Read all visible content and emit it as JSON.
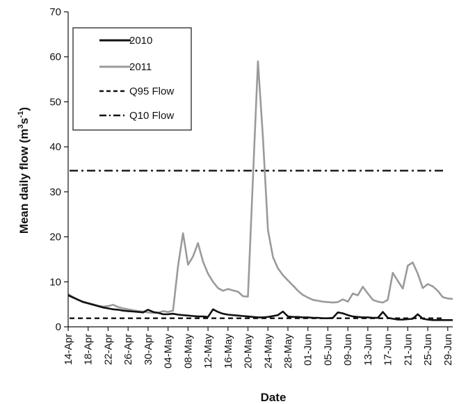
{
  "chart_data": {
    "type": "line",
    "title": "",
    "xlabel": "Date",
    "ylabel": "Mean daily flow (m³s⁻¹)",
    "ylabel_parts": {
      "main": "Mean daily flow (m",
      "sup1": "3",
      "mid": "s",
      "sup2": "-1",
      "end": ")"
    },
    "ylim": [
      0,
      70
    ],
    "yticks": [
      0,
      10,
      20,
      30,
      40,
      50,
      60,
      70
    ],
    "x_dates": [
      "14-Apr",
      "18-Apr",
      "22-Apr",
      "26-Apr",
      "30-Apr",
      "04-May",
      "08-May",
      "12-May",
      "16-May",
      "20-May",
      "24-May",
      "28-May",
      "01-Jun",
      "05-Jun",
      "09-Jun",
      "13-Jun",
      "17-Jun",
      "21-Jun",
      "25-Jun",
      "29-Jun"
    ],
    "legend_position": "top-left",
    "series": [
      {
        "name": "2010",
        "style": "solid",
        "color": "#111111",
        "points": [
          [
            "14-Apr",
            7.0
          ],
          [
            "15-Apr",
            6.5
          ],
          [
            "16-Apr",
            6.0
          ],
          [
            "17-Apr",
            5.5
          ],
          [
            "18-Apr",
            5.2
          ],
          [
            "19-Apr",
            4.9
          ],
          [
            "20-Apr",
            4.6
          ],
          [
            "21-Apr",
            4.3
          ],
          [
            "22-Apr",
            4.1
          ],
          [
            "23-Apr",
            3.9
          ],
          [
            "24-Apr",
            3.8
          ],
          [
            "25-Apr",
            3.6
          ],
          [
            "26-Apr",
            3.5
          ],
          [
            "27-Apr",
            3.4
          ],
          [
            "28-Apr",
            3.3
          ],
          [
            "29-Apr",
            3.2
          ],
          [
            "30-Apr",
            3.8
          ],
          [
            "01-May",
            3.3
          ],
          [
            "02-May",
            3.1
          ],
          [
            "03-May",
            2.8
          ],
          [
            "04-May",
            2.8
          ],
          [
            "05-May",
            2.9
          ],
          [
            "06-May",
            2.7
          ],
          [
            "07-May",
            2.6
          ],
          [
            "08-May",
            2.5
          ],
          [
            "09-May",
            2.4
          ],
          [
            "10-May",
            2.3
          ],
          [
            "11-May",
            2.3
          ],
          [
            "12-May",
            2.2
          ],
          [
            "13-May",
            3.9
          ],
          [
            "14-May",
            3.3
          ],
          [
            "15-May",
            2.9
          ],
          [
            "16-May",
            2.7
          ],
          [
            "17-May",
            2.6
          ],
          [
            "18-May",
            2.5
          ],
          [
            "19-May",
            2.4
          ],
          [
            "20-May",
            2.3
          ],
          [
            "21-May",
            2.2
          ],
          [
            "22-May",
            2.1
          ],
          [
            "23-May",
            2.1
          ],
          [
            "24-May",
            2.2
          ],
          [
            "25-May",
            2.4
          ],
          [
            "26-May",
            2.6
          ],
          [
            "27-May",
            3.4
          ],
          [
            "28-May",
            2.3
          ],
          [
            "29-May",
            2.2
          ],
          [
            "30-May",
            2.2
          ],
          [
            "31-May",
            2.1
          ],
          [
            "01-Jun",
            2.1
          ],
          [
            "02-Jun",
            2.0
          ],
          [
            "03-Jun",
            2.0
          ],
          [
            "04-Jun",
            1.9
          ],
          [
            "05-Jun",
            1.9
          ],
          [
            "06-Jun",
            2.0
          ],
          [
            "07-Jun",
            3.2
          ],
          [
            "08-Jun",
            3.0
          ],
          [
            "09-Jun",
            2.6
          ],
          [
            "10-Jun",
            2.3
          ],
          [
            "11-Jun",
            2.2
          ],
          [
            "12-Jun",
            2.1
          ],
          [
            "13-Jun",
            2.1
          ],
          [
            "14-Jun",
            2.0
          ],
          [
            "15-Jun",
            2.0
          ],
          [
            "16-Jun",
            3.3
          ],
          [
            "17-Jun",
            2.0
          ],
          [
            "18-Jun",
            1.8
          ],
          [
            "19-Jun",
            1.6
          ],
          [
            "20-Jun",
            1.6
          ],
          [
            "21-Jun",
            1.7
          ],
          [
            "22-Jun",
            1.8
          ],
          [
            "23-Jun",
            2.8
          ],
          [
            "24-Jun",
            1.8
          ],
          [
            "25-Jun",
            1.6
          ],
          [
            "26-Jun",
            1.5
          ],
          [
            "27-Jun",
            1.5
          ],
          [
            "28-Jun",
            1.5
          ],
          [
            "29-Jun",
            1.5
          ],
          [
            "30-Jun",
            1.5
          ]
        ]
      },
      {
        "name": "2011",
        "style": "solid",
        "color": "#9a9a9a",
        "points": [
          [
            "14-Apr",
            7.3
          ],
          [
            "15-Apr",
            6.6
          ],
          [
            "16-Apr",
            6.0
          ],
          [
            "17-Apr",
            5.6
          ],
          [
            "18-Apr",
            5.3
          ],
          [
            "19-Apr",
            5.0
          ],
          [
            "20-Apr",
            4.7
          ],
          [
            "21-Apr",
            4.5
          ],
          [
            "22-Apr",
            4.6
          ],
          [
            "23-Apr",
            4.9
          ],
          [
            "24-Apr",
            4.4
          ],
          [
            "25-Apr",
            4.1
          ],
          [
            "26-Apr",
            3.9
          ],
          [
            "27-Apr",
            3.7
          ],
          [
            "28-Apr",
            3.5
          ],
          [
            "29-Apr",
            3.4
          ],
          [
            "30-Apr",
            3.2
          ],
          [
            "01-May",
            3.1
          ],
          [
            "02-May",
            3.1
          ],
          [
            "03-May",
            3.5
          ],
          [
            "04-May",
            3.3
          ],
          [
            "05-May",
            3.6
          ],
          [
            "06-May",
            13.5
          ],
          [
            "07-May",
            20.8
          ],
          [
            "08-May",
            13.8
          ],
          [
            "09-May",
            15.6
          ],
          [
            "10-May",
            18.6
          ],
          [
            "11-May",
            14.5
          ],
          [
            "12-May",
            11.8
          ],
          [
            "13-May",
            10.0
          ],
          [
            "14-May",
            8.6
          ],
          [
            "15-May",
            8.0
          ],
          [
            "16-May",
            8.4
          ],
          [
            "17-May",
            8.1
          ],
          [
            "18-May",
            7.8
          ],
          [
            "19-May",
            6.8
          ],
          [
            "20-May",
            6.7
          ],
          [
            "21-May",
            33.0
          ],
          [
            "22-May",
            59.0
          ],
          [
            "23-May",
            42.0
          ],
          [
            "24-May",
            21.5
          ],
          [
            "25-May",
            15.5
          ],
          [
            "26-May",
            13.0
          ],
          [
            "27-May",
            11.5
          ],
          [
            "28-May",
            10.3
          ],
          [
            "29-May",
            9.2
          ],
          [
            "30-May",
            8.0
          ],
          [
            "31-May",
            7.1
          ],
          [
            "01-Jun",
            6.5
          ],
          [
            "02-Jun",
            6.0
          ],
          [
            "03-Jun",
            5.8
          ],
          [
            "04-Jun",
            5.6
          ],
          [
            "05-Jun",
            5.5
          ],
          [
            "06-Jun",
            5.4
          ],
          [
            "07-Jun",
            5.5
          ],
          [
            "08-Jun",
            6.1
          ],
          [
            "09-Jun",
            5.6
          ],
          [
            "10-Jun",
            7.4
          ],
          [
            "11-Jun",
            7.0
          ],
          [
            "12-Jun",
            8.9
          ],
          [
            "13-Jun",
            7.4
          ],
          [
            "14-Jun",
            6.0
          ],
          [
            "15-Jun",
            5.6
          ],
          [
            "16-Jun",
            5.4
          ],
          [
            "17-Jun",
            6.0
          ],
          [
            "18-Jun",
            12.0
          ],
          [
            "19-Jun",
            10.2
          ],
          [
            "20-Jun",
            8.5
          ],
          [
            "21-Jun",
            13.6
          ],
          [
            "22-Jun",
            14.3
          ],
          [
            "23-Jun",
            11.8
          ],
          [
            "24-Jun",
            8.6
          ],
          [
            "25-Jun",
            9.5
          ],
          [
            "26-Jun",
            9.0
          ],
          [
            "27-Jun",
            8.0
          ],
          [
            "28-Jun",
            6.6
          ],
          [
            "29-Jun",
            6.3
          ],
          [
            "30-Jun",
            6.2
          ]
        ]
      },
      {
        "name": "Q95 Flow",
        "style": "dashed",
        "color": "#111111",
        "points": [
          [
            "14-Apr",
            1.9
          ],
          [
            "30-Jun",
            1.9
          ]
        ]
      },
      {
        "name": "Q10 Flow",
        "style": "dashdot",
        "color": "#111111",
        "points": [
          [
            "14-Apr",
            34.7
          ],
          [
            "30-Jun",
            34.7
          ]
        ]
      }
    ]
  }
}
